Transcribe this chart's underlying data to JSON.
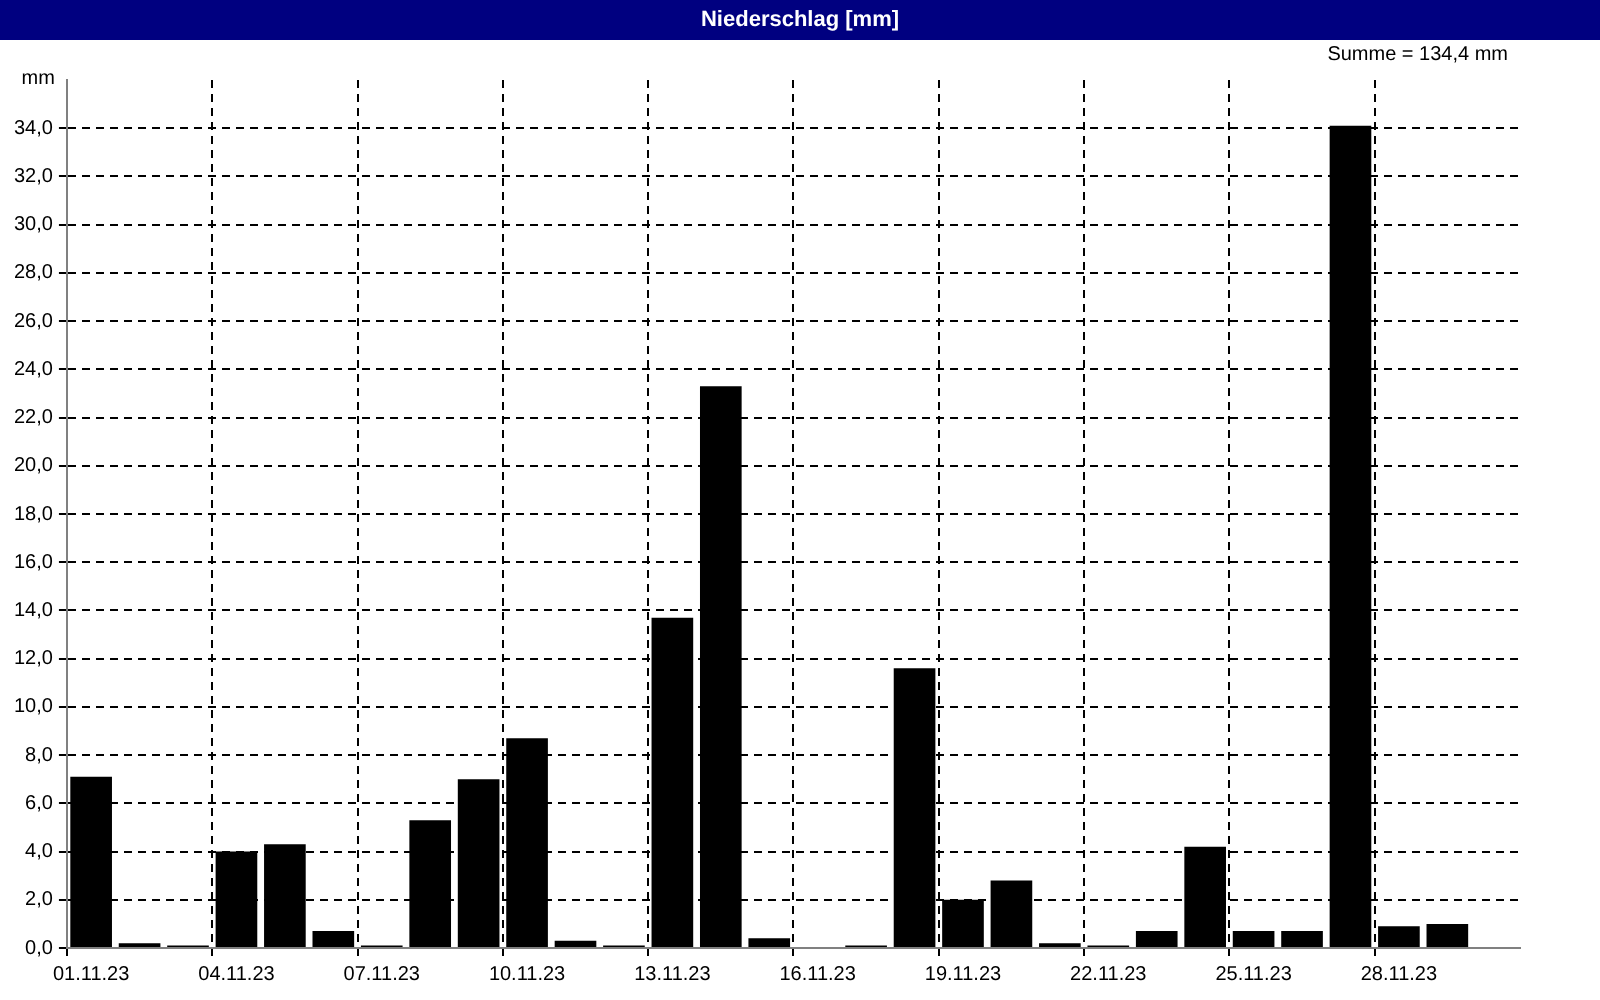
{
  "chart_data": {
    "type": "bar",
    "title": "Niederschlag [mm]",
    "ylabel": "mm",
    "annotations": [
      "Summe = 134,4 mm"
    ],
    "categories": [
      "01.11.23",
      null,
      null,
      "04.11.23",
      null,
      null,
      "07.11.23",
      null,
      null,
      "10.11.23",
      null,
      null,
      "13.11.23",
      null,
      null,
      "16.11.23",
      null,
      null,
      "19.11.23",
      null,
      null,
      "22.11.23",
      null,
      null,
      "25.11.23",
      null,
      null,
      "28.11.23",
      null,
      null
    ],
    "values": [
      7.1,
      0.2,
      0.1,
      4.0,
      4.3,
      0.7,
      0.1,
      5.3,
      7.0,
      8.7,
      0.3,
      0.1,
      13.7,
      23.3,
      0.4,
      0,
      0.1,
      11.6,
      2.0,
      2.8,
      0.2,
      0.1,
      0.7,
      4.2,
      0.7,
      0.7,
      34.1,
      0.9,
      1.0,
      0
    ],
    "color": "#000000",
    "ylim": [
      0,
      36
    ],
    "yticks": [
      {
        "value": 0,
        "label": "0,0"
      },
      {
        "value": 2,
        "label": "2,0"
      },
      {
        "value": 4,
        "label": "4,0"
      },
      {
        "value": 6,
        "label": "6,0"
      },
      {
        "value": 8,
        "label": "8,0"
      },
      {
        "value": 10,
        "label": "10,0"
      },
      {
        "value": 12,
        "label": "12,0"
      },
      {
        "value": 14,
        "label": "14,0"
      },
      {
        "value": 16,
        "label": "16,0"
      },
      {
        "value": 18,
        "label": "18,0"
      },
      {
        "value": 20,
        "label": "20,0"
      },
      {
        "value": 22,
        "label": "22,0"
      },
      {
        "value": 24,
        "label": "24,0"
      },
      {
        "value": 26,
        "label": "26,0"
      },
      {
        "value": 28,
        "label": "28,0"
      },
      {
        "value": 30,
        "label": "30,0"
      },
      {
        "value": 32,
        "label": "32,0"
      },
      {
        "value": 34,
        "label": "34,0"
      }
    ],
    "grid": true,
    "legend": false
  }
}
